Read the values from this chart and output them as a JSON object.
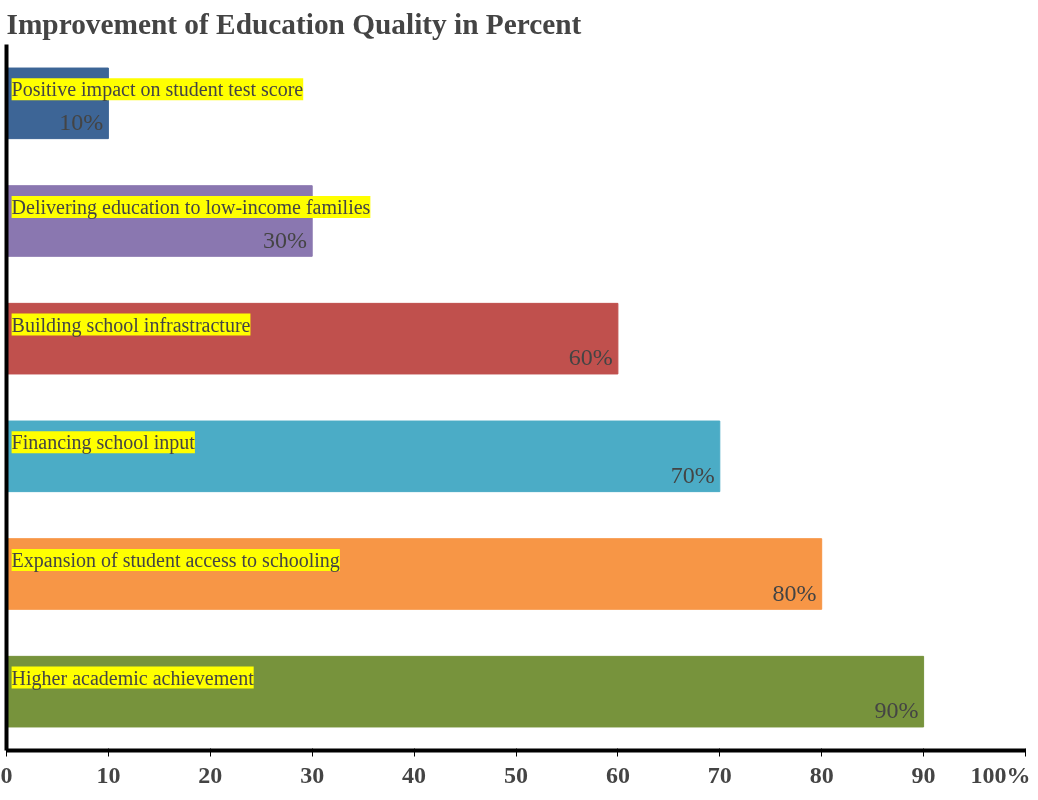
{
  "chart_data": {
    "type": "bar",
    "orientation": "horizontal",
    "title": "Improvement of Education Quality in Percent",
    "categories": [
      "Positive impact on student test score",
      "Delivering education to low-income families",
      "Building school infrastracture",
      "Financing school input",
      "Expansion of student access to schooling",
      "Higher academic achievement"
    ],
    "values": [
      10,
      30,
      60,
      70,
      80,
      90
    ],
    "colors": [
      "#3d6596",
      "#8a77b0",
      "#c0504d",
      "#4bacc6",
      "#f79646",
      "#77933c"
    ],
    "value_labels": [
      "10%",
      "30%",
      "60%",
      "70%",
      "80%",
      "90%"
    ],
    "xlim": [
      0,
      100
    ],
    "xticks": [
      0,
      10,
      20,
      30,
      40,
      50,
      60,
      70,
      80,
      90,
      {
        "value": 100,
        "label": "100%"
      }
    ],
    "tick_labels": "x",
    "grid": false
  }
}
